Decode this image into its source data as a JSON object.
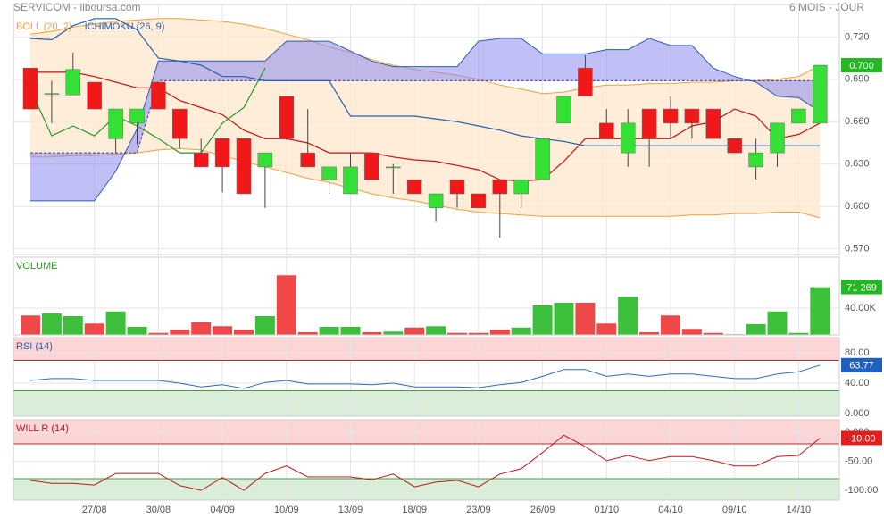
{
  "chart_data": [
    {
      "type": "candlestick",
      "title": "SERVICOM - ilboursa.com",
      "subtitle": "6 MOIS - JOUR",
      "categories": [
        null,
        null,
        null,
        "27/08",
        null,
        null,
        "30/08",
        null,
        null,
        "04/09",
        null,
        null,
        "10/09",
        null,
        null,
        "13/09",
        null,
        null,
        "18/09",
        null,
        null,
        "23/09",
        null,
        null,
        "26/09",
        null,
        null,
        "01/10",
        null,
        null,
        "04/10",
        null,
        null,
        "09/10",
        null,
        null,
        "14/10",
        null
      ],
      "open": [
        0.698,
        0.68,
        0.679,
        0.688,
        0.648,
        0.659,
        0.688,
        0.669,
        0.638,
        0.648,
        0.648,
        0.628,
        0.678,
        0.638,
        0.619,
        0.609,
        0.638,
        0.628,
        0.619,
        0.599,
        0.619,
        0.609,
        0.619,
        0.609,
        0.619,
        0.659,
        0.698,
        0.659,
        0.638,
        0.669,
        0.669,
        0.669,
        0.669,
        0.648,
        0.628,
        0.638,
        0.659,
        0.659
      ],
      "high": [
        0.698,
        0.689,
        0.709,
        0.688,
        0.669,
        0.669,
        0.688,
        0.669,
        0.648,
        0.648,
        0.648,
        0.638,
        0.678,
        0.669,
        0.628,
        0.638,
        0.638,
        0.63,
        0.619,
        0.609,
        0.619,
        0.609,
        0.619,
        0.619,
        0.648,
        0.678,
        0.707,
        0.669,
        0.669,
        0.669,
        0.678,
        0.669,
        0.669,
        0.648,
        0.648,
        0.659,
        0.669,
        0.7
      ],
      "low": [
        0.669,
        0.659,
        0.679,
        0.669,
        0.638,
        0.644,
        0.669,
        0.641,
        0.628,
        0.61,
        0.609,
        0.599,
        0.647,
        0.628,
        0.609,
        0.609,
        0.619,
        0.609,
        0.609,
        0.589,
        0.599,
        0.599,
        0.578,
        0.599,
        0.619,
        0.659,
        0.678,
        0.648,
        0.628,
        0.628,
        0.648,
        0.648,
        0.648,
        0.638,
        0.619,
        0.628,
        0.659,
        0.659
      ],
      "close": [
        0.669,
        0.68,
        0.697,
        0.669,
        0.669,
        0.669,
        0.669,
        0.648,
        0.628,
        0.628,
        0.609,
        0.638,
        0.648,
        0.628,
        0.628,
        0.628,
        0.619,
        0.628,
        0.609,
        0.609,
        0.609,
        0.599,
        0.609,
        0.619,
        0.648,
        0.678,
        0.678,
        0.648,
        0.659,
        0.648,
        0.659,
        0.659,
        0.648,
        0.638,
        0.638,
        0.659,
        0.669,
        0.7
      ],
      "close_labels": {
        "37": "0.700"
      },
      "up_color": "#33e033",
      "down_color": "#f01818",
      "label_color": "#22b822",
      "overlays": [
        {
          "name": "BOLL (20, 2)",
          "color": "#f0a040",
          "fill": "#fde8cf",
          "upper": [
            0.722,
            0.724,
            0.727,
            0.729,
            0.731,
            0.732,
            0.733,
            0.733,
            0.732,
            0.731,
            0.729,
            0.726,
            0.722,
            0.718,
            0.713,
            0.709,
            0.704,
            0.7,
            0.697,
            0.695,
            0.693,
            0.69,
            0.686,
            0.683,
            0.68,
            0.681,
            0.684,
            0.686,
            0.686,
            0.687,
            0.687,
            0.688,
            0.688,
            0.689,
            0.689,
            0.69,
            0.692,
            0.7
          ],
          "lower": [
            0.635,
            0.635,
            0.636,
            0.636,
            0.637,
            0.638,
            0.64,
            0.641,
            0.64,
            0.636,
            0.632,
            0.628,
            0.624,
            0.62,
            0.617,
            0.613,
            0.609,
            0.606,
            0.604,
            0.601,
            0.598,
            0.596,
            0.595,
            0.594,
            0.593,
            0.593,
            0.593,
            0.593,
            0.593,
            0.593,
            0.593,
            0.594,
            0.594,
            0.595,
            0.595,
            0.596,
            0.596,
            0.592
          ]
        },
        {
          "name": "ICHIMOKU (26, 9)",
          "color": "#2a5db0",
          "cloud_color": "#8c8cf0",
          "tenkan_color": "#cc1111",
          "chikou_color": "#2a9a2a",
          "tenkan": [
            0.695,
            0.695,
            0.695,
            0.692,
            0.688,
            0.684,
            0.684,
            0.675,
            0.67,
            0.665,
            0.654,
            0.648,
            0.648,
            0.645,
            0.638,
            0.638,
            0.638,
            0.635,
            0.633,
            0.632,
            0.629,
            0.626,
            0.619,
            0.618,
            0.619,
            0.632,
            0.648,
            0.648,
            0.648,
            0.648,
            0.648,
            0.657,
            0.66,
            0.669,
            0.664,
            0.648,
            0.651,
            0.659
          ],
          "kijun": [
            0.719,
            0.718,
            0.728,
            0.733,
            0.733,
            0.725,
            0.705,
            0.703,
            0.7,
            0.692,
            0.692,
            0.689,
            0.689,
            0.689,
            0.689,
            0.664,
            0.664,
            0.664,
            0.664,
            0.662,
            0.66,
            0.657,
            0.654,
            0.65,
            0.648,
            0.646,
            0.643,
            0.643,
            0.643,
            0.643,
            0.643,
            0.643,
            0.643,
            0.643,
            0.643,
            0.643,
            0.643,
            0.643
          ],
          "chikou": [
            0.683,
            0.65,
            0.657,
            0.65,
            0.664,
            0.657,
            0.648,
            0.638,
            0.638,
            0.659,
            0.67,
            0.698,
            null,
            null,
            null,
            null,
            null,
            null,
            null,
            null,
            null,
            null,
            null,
            null,
            null,
            null,
            null,
            null,
            null,
            null,
            null,
            null,
            null,
            null,
            null,
            null,
            null,
            null
          ],
          "senkou_a": [
            0.638,
            0.638,
            0.638,
            0.638,
            0.638,
            0.638,
            0.689,
            0.689,
            0.689,
            0.689,
            0.689,
            0.689,
            0.689,
            0.689,
            0.689,
            0.689,
            0.689,
            0.689,
            0.689,
            0.689,
            0.689,
            0.689,
            0.689,
            0.689,
            0.689,
            0.689,
            0.689,
            0.689,
            0.689,
            0.689,
            0.689,
            0.689,
            0.689,
            0.689,
            0.689,
            0.689,
            0.689,
            0.689
          ],
          "senkou_b": [
            0.604,
            0.604,
            0.604,
            0.604,
            0.625,
            0.655,
            0.703,
            0.703,
            0.703,
            0.703,
            0.703,
            0.703,
            0.717,
            0.717,
            0.717,
            0.71,
            0.703,
            0.699,
            0.699,
            0.699,
            0.699,
            0.717,
            0.719,
            0.719,
            0.708,
            0.708,
            0.708,
            0.711,
            0.711,
            0.719,
            0.714,
            0.714,
            0.698,
            0.692,
            0.688,
            0.678,
            0.677,
            0.667
          ]
        }
      ],
      "ylim": [
        0.566,
        0.743
      ],
      "yticks": [
        {
          "value": 0.72,
          "label": "0.720"
        },
        {
          "value": 0.69,
          "label": "0.690"
        },
        {
          "value": 0.66,
          "label": "0.660"
        },
        {
          "value": 0.63,
          "label": "0.630"
        },
        {
          "value": 0.6,
          "label": "0.600"
        },
        {
          "value": 0.57,
          "label": "0.570"
        }
      ],
      "grid": true
    },
    {
      "type": "bar",
      "title": "VOLUME",
      "title_color": "#2a9a2a",
      "values": [
        29000,
        32000,
        28000,
        17000,
        35000,
        12000,
        3000,
        8000,
        19000,
        13000,
        8000,
        28000,
        89000,
        4000,
        12000,
        12000,
        4000,
        5000,
        11000,
        13000,
        3000,
        3000,
        8000,
        11000,
        44000,
        48000,
        48000,
        17000,
        57000,
        4000,
        29000,
        9000,
        3000,
        1000,
        16000,
        35000,
        3000,
        71269
      ],
      "value_labels": {
        "37": "71 269"
      },
      "up_color": "#3cc03c",
      "down_color": "#f04848",
      "label_color": "#22b822",
      "ylim": [
        0,
        116000
      ],
      "yticks": [
        {
          "value": 40000,
          "label": "40.00K"
        }
      ],
      "grid": true
    },
    {
      "type": "line",
      "title": "RSI (14)",
      "title_color": "#2a5db0",
      "color": "#2a6cc0",
      "values": [
        43.5,
        46,
        46,
        43.5,
        43.5,
        43.5,
        43.5,
        40,
        35,
        38,
        33,
        41,
        43.5,
        39,
        39,
        39,
        38,
        40,
        35,
        35,
        35,
        34,
        38,
        41,
        49,
        58,
        58,
        49,
        52,
        49,
        52,
        52,
        49,
        46,
        46,
        52,
        55,
        63.77
      ],
      "value_labels": {
        "37": "63.77"
      },
      "label_color": "#1f5fbf",
      "zones": {
        "upper": 70,
        "lower": 30
      },
      "ylim": [
        -3.5,
        100
      ],
      "yticks": [
        {
          "value": 80,
          "label": "80.00"
        },
        {
          "value": 40,
          "label": "40.00"
        },
        {
          "value": 0,
          "label": "0.000"
        }
      ],
      "grid": true
    },
    {
      "type": "line",
      "title": "WILL R (14)",
      "title_color": "#b01818",
      "color": "#c01818",
      "values": [
        -83,
        -88,
        -88,
        -91,
        -71,
        -71,
        -71,
        -92,
        -100,
        -78,
        -100,
        -71,
        -58,
        -77,
        -77,
        -77,
        -82,
        -72,
        -94,
        -86,
        -83,
        -94,
        -72,
        -63,
        -35,
        -5,
        -25,
        -49,
        -40,
        -49,
        -42,
        -42,
        -49,
        -58,
        -58,
        -42,
        -40,
        -10
      ],
      "value_labels": {
        "37": "-10.00"
      },
      "label_color": "#e02020",
      "zones": {
        "upper": -20,
        "lower": -80
      },
      "ylim": [
        -117,
        21.5
      ],
      "yticks": [
        {
          "value": 0,
          "label": "0.000"
        },
        {
          "value": -50,
          "label": "-50.00"
        },
        {
          "value": -100,
          "label": "-100.00"
        }
      ],
      "grid": true
    }
  ]
}
